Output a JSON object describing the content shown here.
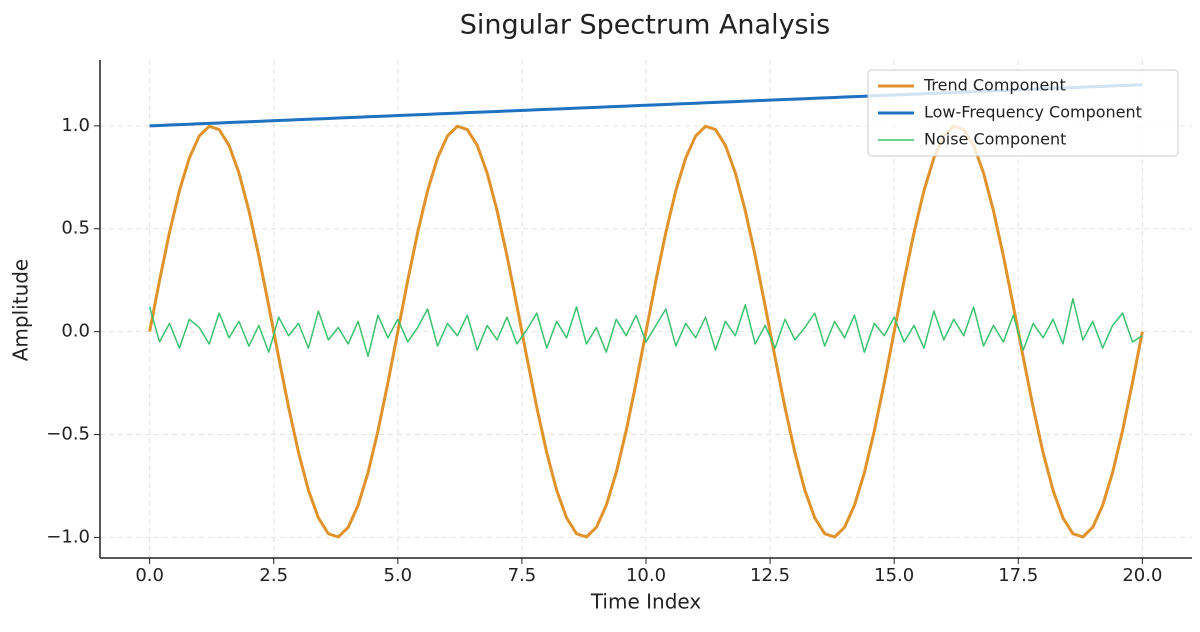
{
  "chart_data": {
    "type": "line",
    "title": "Singular Spectrum Analysis",
    "x_label": "Time Index",
    "y_label": "Amplitude",
    "x": [
      0,
      0.2,
      0.4,
      0.6,
      0.8,
      1,
      1.2,
      1.4,
      1.6,
      1.8,
      2,
      2.2,
      2.4,
      2.6,
      2.8,
      3,
      3.2,
      3.4,
      3.6,
      3.8,
      4,
      4.2,
      4.4,
      4.6,
      4.8,
      5,
      5.2,
      5.4,
      5.6,
      5.8,
      6,
      6.2,
      6.4,
      6.6,
      6.8,
      7,
      7.2,
      7.4,
      7.6,
      7.8,
      8,
      8.2,
      8.4,
      8.6,
      8.8,
      9,
      9.2,
      9.4,
      9.6,
      9.8,
      10,
      10.2,
      10.4,
      10.6,
      10.8,
      11,
      11.2,
      11.4,
      11.6,
      11.8,
      12,
      12.2,
      12.4,
      12.6,
      12.8,
      13,
      13.2,
      13.4,
      13.6,
      13.8,
      14,
      14.2,
      14.4,
      14.6,
      14.8,
      15,
      15.2,
      15.4,
      15.6,
      15.8,
      16,
      16.2,
      16.4,
      16.6,
      16.8,
      17,
      17.2,
      17.4,
      17.6,
      17.8,
      18,
      18.2,
      18.4,
      18.6,
      18.8,
      19,
      19.2,
      19.4,
      19.6,
      19.8,
      20
    ],
    "series": [
      {
        "name": "Trend Component",
        "color": "#e0922b",
        "width": 3,
        "values": [
          0,
          0.249,
          0.482,
          0.685,
          0.844,
          0.951,
          0.998,
          0.982,
          0.905,
          0.771,
          0.588,
          0.368,
          0.125,
          -0.125,
          -0.368,
          -0.588,
          -0.771,
          -0.905,
          -0.982,
          -0.998,
          -0.951,
          -0.844,
          -0.685,
          -0.482,
          -0.249,
          0,
          0.249,
          0.482,
          0.685,
          0.844,
          0.951,
          0.998,
          0.982,
          0.905,
          0.771,
          0.588,
          0.368,
          0.125,
          -0.125,
          -0.368,
          -0.588,
          -0.771,
          -0.905,
          -0.982,
          -0.998,
          -0.951,
          -0.844,
          -0.685,
          -0.482,
          -0.249,
          0,
          0.249,
          0.482,
          0.685,
          0.844,
          0.951,
          0.998,
          0.982,
          0.905,
          0.771,
          0.588,
          0.368,
          0.125,
          -0.125,
          -0.368,
          -0.588,
          -0.771,
          -0.905,
          -0.982,
          -0.998,
          -0.951,
          -0.844,
          -0.685,
          -0.482,
          -0.249,
          0,
          0.249,
          0.482,
          0.685,
          0.844,
          0.951,
          0.998,
          0.982,
          0.905,
          0.771,
          0.588,
          0.368,
          0.125,
          -0.125,
          -0.368,
          -0.588,
          -0.771,
          -0.905,
          -0.982,
          -0.998,
          -0.951,
          -0.844,
          -0.685,
          -0.482,
          -0.249,
          0
        ]
      },
      {
        "name": "Low-Frequency Component",
        "color": "#1f72c0",
        "width": 3,
        "values": [
          1,
          1.002,
          1.004,
          1.006,
          1.008,
          1.01,
          1.012,
          1.014,
          1.016,
          1.018,
          1.02,
          1.022,
          1.024,
          1.026,
          1.028,
          1.03,
          1.032,
          1.034,
          1.036,
          1.038,
          1.04,
          1.042,
          1.044,
          1.046,
          1.048,
          1.05,
          1.052,
          1.054,
          1.056,
          1.058,
          1.06,
          1.062,
          1.064,
          1.066,
          1.068,
          1.07,
          1.072,
          1.074,
          1.076,
          1.078,
          1.08,
          1.082,
          1.084,
          1.086,
          1.088,
          1.09,
          1.092,
          1.094,
          1.096,
          1.098,
          1.1,
          1.102,
          1.104,
          1.106,
          1.108,
          1.11,
          1.112,
          1.114,
          1.116,
          1.118,
          1.12,
          1.122,
          1.124,
          1.126,
          1.128,
          1.13,
          1.132,
          1.134,
          1.136,
          1.138,
          1.14,
          1.142,
          1.144,
          1.146,
          1.148,
          1.15,
          1.152,
          1.154,
          1.156,
          1.158,
          1.16,
          1.162,
          1.164,
          1.166,
          1.168,
          1.17,
          1.172,
          1.174,
          1.176,
          1.178,
          1.18,
          1.182,
          1.184,
          1.186,
          1.188,
          1.19,
          1.192,
          1.194,
          1.196,
          1.198,
          1.2
        ]
      },
      {
        "name": "Noise Component",
        "color": "#3cc26e",
        "width": 1.5,
        "values": [
          0.12,
          -0.05,
          0.04,
          -0.08,
          0.06,
          0.02,
          -0.06,
          0.09,
          -0.03,
          0.05,
          -0.07,
          0.03,
          -0.1,
          0.07,
          -0.02,
          0.04,
          -0.08,
          0.1,
          -0.04,
          0.02,
          -0.06,
          0.05,
          -0.12,
          0.08,
          -0.03,
          0.06,
          -0.05,
          0.02,
          0.11,
          -0.07,
          0.04,
          -0.02,
          0.08,
          -0.09,
          0.03,
          -0.04,
          0.07,
          -0.06,
          0.01,
          0.09,
          -0.08,
          0.05,
          -0.03,
          0.12,
          -0.06,
          0.02,
          -0.1,
          0.06,
          -0.02,
          0.08,
          -0.05,
          0.03,
          0.11,
          -0.07,
          0.04,
          -0.03,
          0.07,
          -0.09,
          0.05,
          -0.02,
          0.13,
          -0.06,
          0.03,
          -0.08,
          0.06,
          -0.04,
          0.02,
          0.09,
          -0.07,
          0.05,
          -0.03,
          0.08,
          -0.1,
          0.04,
          -0.02,
          0.07,
          -0.05,
          0.03,
          -0.08,
          0.1,
          -0.04,
          0.06,
          -0.02,
          0.12,
          -0.07,
          0.03,
          -0.05,
          0.08,
          -0.09,
          0.04,
          -0.03,
          0.06,
          -0.06,
          0.16,
          -0.04,
          0.05,
          -0.08,
          0.03,
          0.09,
          -0.05,
          -0.02
        ]
      }
    ],
    "xlim": [
      -1,
      21
    ],
    "ylim": [
      -1.1,
      1.32
    ],
    "xticks": [
      {
        "value": 0,
        "label": "0.0"
      },
      2.5,
      {
        "value": 5,
        "label": "5.0"
      },
      7.5,
      {
        "value": 10,
        "label": "10.0"
      },
      12.5,
      {
        "value": 15,
        "label": "15.0"
      },
      17.5,
      {
        "value": 20,
        "label": "20.0"
      }
    ],
    "yticks": [
      {
        "value": -1,
        "label": "−1.0"
      },
      {
        "value": -0.5,
        "label": "−0.5"
      },
      {
        "value": 0,
        "label": "0.0"
      },
      0.5,
      {
        "value": 1,
        "label": "1.0"
      }
    ],
    "grid": true,
    "legend": "upper right"
  }
}
